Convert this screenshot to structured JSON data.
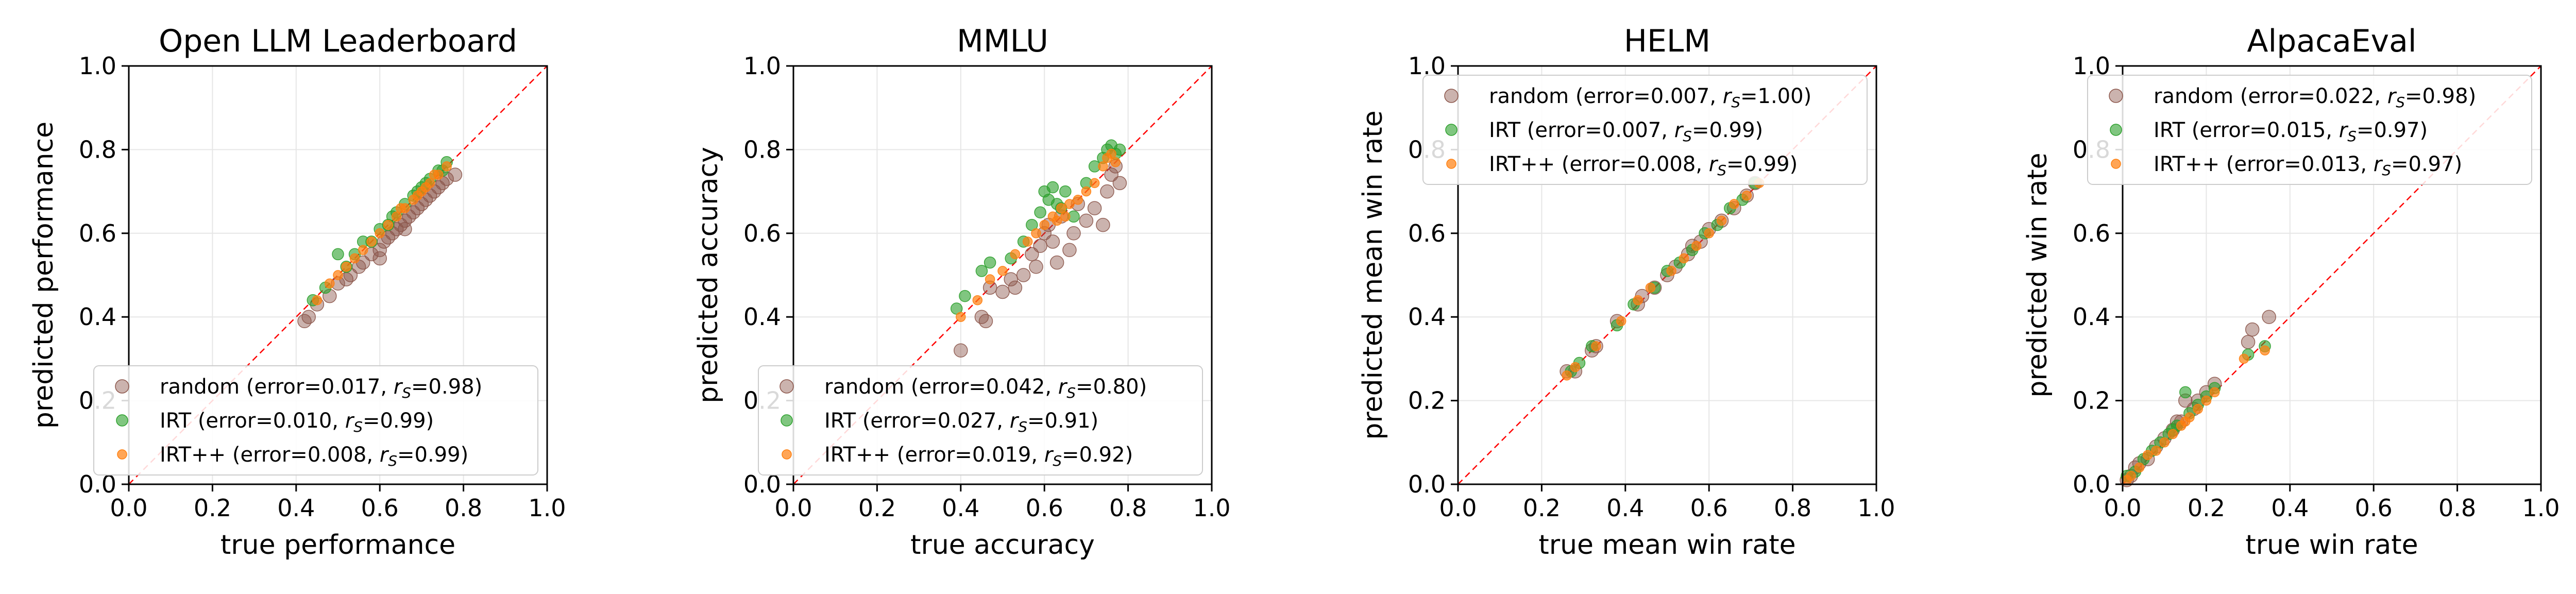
{
  "colors": {
    "random": "#8c564b",
    "IRT": "#2ca02c",
    "IRT++": "#ff7f0e",
    "diagonal": "#ff0000",
    "grid": "#e6e6e6"
  },
  "chart_data": [
    {
      "type": "scatter",
      "title": "Open LLM Leaderboard",
      "xlabel": "true performance",
      "ylabel": "predicted performance",
      "xlim": [
        0,
        1
      ],
      "ylim": [
        0,
        1
      ],
      "xticks": [
        "0.0",
        "0.2",
        "0.4",
        "0.6",
        "0.8",
        "1.0"
      ],
      "yticks": [
        "0.0",
        "0.2",
        "0.4",
        "0.6",
        "0.8",
        "1.0"
      ],
      "grid": true,
      "legend_position": "lower-right",
      "series": [
        {
          "name": "random",
          "error": "0.017",
          "rs": "0.98",
          "points": [
            [
              0.42,
              0.39
            ],
            [
              0.43,
              0.4
            ],
            [
              0.45,
              0.43
            ],
            [
              0.48,
              0.45
            ],
            [
              0.5,
              0.48
            ],
            [
              0.52,
              0.49
            ],
            [
              0.53,
              0.5
            ],
            [
              0.55,
              0.52
            ],
            [
              0.56,
              0.53
            ],
            [
              0.58,
              0.55
            ],
            [
              0.6,
              0.56
            ],
            [
              0.61,
              0.58
            ],
            [
              0.62,
              0.59
            ],
            [
              0.63,
              0.6
            ],
            [
              0.64,
              0.61
            ],
            [
              0.65,
              0.62
            ],
            [
              0.66,
              0.63
            ],
            [
              0.67,
              0.64
            ],
            [
              0.68,
              0.65
            ],
            [
              0.69,
              0.66
            ],
            [
              0.7,
              0.67
            ],
            [
              0.71,
              0.68
            ],
            [
              0.72,
              0.69
            ],
            [
              0.73,
              0.7
            ],
            [
              0.74,
              0.71
            ],
            [
              0.75,
              0.72
            ],
            [
              0.76,
              0.73
            ],
            [
              0.78,
              0.74
            ],
            [
              0.6,
              0.54
            ],
            [
              0.66,
              0.61
            ]
          ]
        },
        {
          "name": "IRT",
          "error": "0.010",
          "rs": "0.99",
          "points": [
            [
              0.44,
              0.44
            ],
            [
              0.47,
              0.47
            ],
            [
              0.5,
              0.55
            ],
            [
              0.52,
              0.52
            ],
            [
              0.54,
              0.55
            ],
            [
              0.56,
              0.58
            ],
            [
              0.58,
              0.58
            ],
            [
              0.6,
              0.61
            ],
            [
              0.62,
              0.62
            ],
            [
              0.64,
              0.65
            ],
            [
              0.66,
              0.67
            ],
            [
              0.68,
              0.69
            ],
            [
              0.7,
              0.71
            ],
            [
              0.72,
              0.73
            ],
            [
              0.74,
              0.75
            ],
            [
              0.76,
              0.77
            ],
            [
              0.63,
              0.64
            ],
            [
              0.69,
              0.7
            ],
            [
              0.71,
              0.72
            ],
            [
              0.75,
              0.75
            ]
          ]
        },
        {
          "name": "IRT++",
          "error": "0.008",
          "rs": "0.99",
          "points": [
            [
              0.45,
              0.44
            ],
            [
              0.48,
              0.48
            ],
            [
              0.5,
              0.5
            ],
            [
              0.52,
              0.52
            ],
            [
              0.54,
              0.54
            ],
            [
              0.56,
              0.56
            ],
            [
              0.58,
              0.58
            ],
            [
              0.6,
              0.6
            ],
            [
              0.62,
              0.62
            ],
            [
              0.64,
              0.64
            ],
            [
              0.66,
              0.66
            ],
            [
              0.68,
              0.68
            ],
            [
              0.7,
              0.7
            ],
            [
              0.72,
              0.72
            ],
            [
              0.74,
              0.74
            ],
            [
              0.76,
              0.76
            ],
            [
              0.65,
              0.66
            ],
            [
              0.69,
              0.69
            ],
            [
              0.71,
              0.71
            ],
            [
              0.73,
              0.74
            ]
          ]
        }
      ]
    },
    {
      "type": "scatter",
      "title": "MMLU",
      "xlabel": "true accuracy",
      "ylabel": "predicted accuracy",
      "xlim": [
        0,
        1
      ],
      "ylim": [
        0,
        1
      ],
      "xticks": [
        "0.0",
        "0.2",
        "0.4",
        "0.6",
        "0.8",
        "1.0"
      ],
      "yticks": [
        "0.0",
        "0.2",
        "0.4",
        "0.6",
        "0.8",
        "1.0"
      ],
      "grid": true,
      "legend_position": "lower-right",
      "series": [
        {
          "name": "random",
          "error": "0.042",
          "rs": "0.80",
          "points": [
            [
              0.4,
              0.32
            ],
            [
              0.45,
              0.4
            ],
            [
              0.46,
              0.39
            ],
            [
              0.47,
              0.47
            ],
            [
              0.5,
              0.46
            ],
            [
              0.52,
              0.49
            ],
            [
              0.53,
              0.47
            ],
            [
              0.55,
              0.5
            ],
            [
              0.57,
              0.55
            ],
            [
              0.58,
              0.52
            ],
            [
              0.59,
              0.57
            ],
            [
              0.6,
              0.6
            ],
            [
              0.61,
              0.62
            ],
            [
              0.63,
              0.53
            ],
            [
              0.64,
              0.64
            ],
            [
              0.66,
              0.56
            ],
            [
              0.67,
              0.6
            ],
            [
              0.7,
              0.63
            ],
            [
              0.72,
              0.66
            ],
            [
              0.74,
              0.62
            ],
            [
              0.75,
              0.7
            ],
            [
              0.76,
              0.74
            ],
            [
              0.77,
              0.76
            ],
            [
              0.78,
              0.72
            ],
            [
              0.62,
              0.58
            ],
            [
              0.68,
              0.67
            ]
          ]
        },
        {
          "name": "IRT",
          "error": "0.027",
          "rs": "0.91",
          "points": [
            [
              0.39,
              0.42
            ],
            [
              0.41,
              0.45
            ],
            [
              0.45,
              0.51
            ],
            [
              0.47,
              0.53
            ],
            [
              0.52,
              0.54
            ],
            [
              0.55,
              0.58
            ],
            [
              0.57,
              0.62
            ],
            [
              0.59,
              0.65
            ],
            [
              0.6,
              0.7
            ],
            [
              0.62,
              0.71
            ],
            [
              0.63,
              0.67
            ],
            [
              0.65,
              0.7
            ],
            [
              0.67,
              0.64
            ],
            [
              0.7,
              0.72
            ],
            [
              0.72,
              0.76
            ],
            [
              0.74,
              0.78
            ],
            [
              0.75,
              0.8
            ],
            [
              0.76,
              0.81
            ],
            [
              0.77,
              0.79
            ],
            [
              0.78,
              0.8
            ],
            [
              0.61,
              0.68
            ],
            [
              0.64,
              0.66
            ]
          ]
        },
        {
          "name": "IRT++",
          "error": "0.019",
          "rs": "0.92",
          "points": [
            [
              0.4,
              0.4
            ],
            [
              0.44,
              0.44
            ],
            [
              0.47,
              0.49
            ],
            [
              0.5,
              0.51
            ],
            [
              0.53,
              0.55
            ],
            [
              0.56,
              0.58
            ],
            [
              0.58,
              0.6
            ],
            [
              0.6,
              0.62
            ],
            [
              0.62,
              0.64
            ],
            [
              0.64,
              0.66
            ],
            [
              0.66,
              0.67
            ],
            [
              0.68,
              0.68
            ],
            [
              0.7,
              0.7
            ],
            [
              0.72,
              0.72
            ],
            [
              0.74,
              0.76
            ],
            [
              0.75,
              0.78
            ],
            [
              0.76,
              0.79
            ],
            [
              0.77,
              0.77
            ],
            [
              0.63,
              0.63
            ],
            [
              0.65,
              0.64
            ]
          ]
        }
      ]
    },
    {
      "type": "scatter",
      "title": "HELM",
      "xlabel": "true mean win rate",
      "ylabel": "predicted mean win rate",
      "xlim": [
        0,
        1
      ],
      "ylim": [
        0,
        1
      ],
      "xticks": [
        "0.0",
        "0.2",
        "0.4",
        "0.6",
        "0.8",
        "1.0"
      ],
      "yticks": [
        "0.0",
        "0.2",
        "0.4",
        "0.6",
        "0.8",
        "1.0"
      ],
      "grid": true,
      "legend_position": "top-right",
      "series": [
        {
          "name": "random",
          "error": "0.007",
          "rs": "1.00",
          "points": [
            [
              0.26,
              0.27
            ],
            [
              0.28,
              0.27
            ],
            [
              0.32,
              0.32
            ],
            [
              0.33,
              0.33
            ],
            [
              0.38,
              0.39
            ],
            [
              0.43,
              0.43
            ],
            [
              0.47,
              0.47
            ],
            [
              0.5,
              0.5
            ],
            [
              0.52,
              0.52
            ],
            [
              0.55,
              0.55
            ],
            [
              0.58,
              0.58
            ],
            [
              0.6,
              0.61
            ],
            [
              0.63,
              0.63
            ],
            [
              0.66,
              0.66
            ],
            [
              0.69,
              0.69
            ],
            [
              0.71,
              0.72
            ],
            [
              0.44,
              0.45
            ],
            [
              0.56,
              0.57
            ]
          ]
        },
        {
          "name": "IRT",
          "error": "0.007",
          "rs": "0.99",
          "points": [
            [
              0.27,
              0.27
            ],
            [
              0.29,
              0.29
            ],
            [
              0.32,
              0.33
            ],
            [
              0.38,
              0.38
            ],
            [
              0.42,
              0.43
            ],
            [
              0.47,
              0.47
            ],
            [
              0.5,
              0.51
            ],
            [
              0.53,
              0.53
            ],
            [
              0.56,
              0.56
            ],
            [
              0.59,
              0.6
            ],
            [
              0.62,
              0.62
            ],
            [
              0.65,
              0.66
            ],
            [
              0.68,
              0.68
            ],
            [
              0.71,
              0.72
            ]
          ]
        },
        {
          "name": "IRT++",
          "error": "0.008",
          "rs": "0.99",
          "points": [
            [
              0.26,
              0.26
            ],
            [
              0.28,
              0.28
            ],
            [
              0.33,
              0.33
            ],
            [
              0.39,
              0.39
            ],
            [
              0.43,
              0.44
            ],
            [
              0.46,
              0.47
            ],
            [
              0.51,
              0.51
            ],
            [
              0.54,
              0.54
            ],
            [
              0.57,
              0.57
            ],
            [
              0.6,
              0.6
            ],
            [
              0.63,
              0.63
            ],
            [
              0.66,
              0.67
            ],
            [
              0.69,
              0.69
            ],
            [
              0.72,
              0.72
            ]
          ]
        }
      ]
    },
    {
      "type": "scatter",
      "title": "AlpacaEval",
      "xlabel": "true win rate",
      "ylabel": "predicted win rate",
      "xlim": [
        0,
        1
      ],
      "ylim": [
        0,
        1
      ],
      "xticks": [
        "0.0",
        "0.2",
        "0.4",
        "0.6",
        "0.8",
        "1.0"
      ],
      "yticks": [
        "0.0",
        "0.2",
        "0.4",
        "0.6",
        "0.8",
        "1.0"
      ],
      "grid": true,
      "legend_position": "top-right",
      "series": [
        {
          "name": "random",
          "error": "0.022",
          "rs": "0.98",
          "points": [
            [
              0.01,
              0.01
            ],
            [
              0.02,
              0.02
            ],
            [
              0.03,
              0.04
            ],
            [
              0.04,
              0.05
            ],
            [
              0.06,
              0.06
            ],
            [
              0.08,
              0.09
            ],
            [
              0.1,
              0.11
            ],
            [
              0.12,
              0.13
            ],
            [
              0.14,
              0.15
            ],
            [
              0.15,
              0.2
            ],
            [
              0.17,
              0.18
            ],
            [
              0.2,
              0.22
            ],
            [
              0.22,
              0.24
            ],
            [
              0.3,
              0.34
            ],
            [
              0.31,
              0.37
            ],
            [
              0.35,
              0.4
            ],
            [
              0.13,
              0.15
            ],
            [
              0.18,
              0.2
            ]
          ]
        },
        {
          "name": "IRT",
          "error": "0.015",
          "rs": "0.97",
          "points": [
            [
              0.01,
              0.02
            ],
            [
              0.03,
              0.03
            ],
            [
              0.05,
              0.06
            ],
            [
              0.07,
              0.08
            ],
            [
              0.09,
              0.1
            ],
            [
              0.11,
              0.12
            ],
            [
              0.13,
              0.14
            ],
            [
              0.15,
              0.22
            ],
            [
              0.16,
              0.17
            ],
            [
              0.18,
              0.19
            ],
            [
              0.2,
              0.21
            ],
            [
              0.22,
              0.23
            ],
            [
              0.3,
              0.31
            ],
            [
              0.34,
              0.33
            ],
            [
              0.12,
              0.13
            ]
          ]
        },
        {
          "name": "IRT++",
          "error": "0.013",
          "rs": "0.97",
          "points": [
            [
              0.01,
              0.01
            ],
            [
              0.02,
              0.02
            ],
            [
              0.04,
              0.04
            ],
            [
              0.06,
              0.07
            ],
            [
              0.08,
              0.08
            ],
            [
              0.1,
              0.1
            ],
            [
              0.12,
              0.12
            ],
            [
              0.14,
              0.14
            ],
            [
              0.16,
              0.16
            ],
            [
              0.18,
              0.18
            ],
            [
              0.2,
              0.2
            ],
            [
              0.22,
              0.22
            ],
            [
              0.29,
              0.3
            ],
            [
              0.34,
              0.32
            ],
            [
              0.15,
              0.15
            ]
          ]
        }
      ]
    }
  ]
}
